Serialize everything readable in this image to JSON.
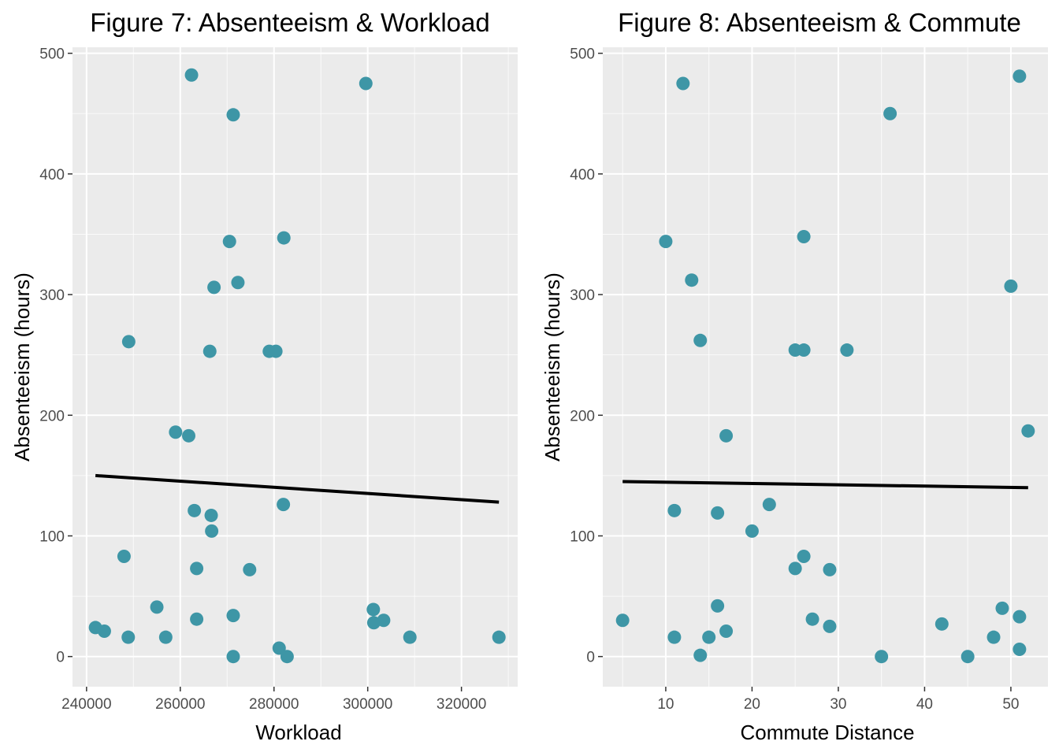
{
  "colors": {
    "point": "#3e96a6",
    "trend_line": "#000000",
    "panel_background": "#ebebeb",
    "grid": "#ffffff"
  },
  "chart_data": [
    {
      "type": "scatter",
      "title": "Figure 7: Absenteeism & Workload",
      "xlabel": "Workload",
      "ylabel": "Absenteeism (hours)",
      "xlim": [
        237000,
        332000
      ],
      "ylim": [
        -25,
        505
      ],
      "xticks": [
        240000,
        260000,
        280000,
        300000,
        320000
      ],
      "xtick_labels": [
        "240000",
        "260000",
        "280000",
        "300000",
        "320000"
      ],
      "yticks": [
        0,
        100,
        200,
        300,
        400,
        500
      ],
      "ytick_labels": [
        "0",
        "100",
        "200",
        "300",
        "400",
        "500"
      ],
      "grid": true,
      "points": [
        [
          262400,
          482
        ],
        [
          299600,
          475
        ],
        [
          271300,
          449
        ],
        [
          282100,
          347
        ],
        [
          270500,
          344
        ],
        [
          272300,
          310
        ],
        [
          267200,
          306
        ],
        [
          249000,
          261
        ],
        [
          266300,
          253
        ],
        [
          279000,
          253
        ],
        [
          280400,
          253
        ],
        [
          259000,
          186
        ],
        [
          261800,
          183
        ],
        [
          282000,
          126
        ],
        [
          263000,
          121
        ],
        [
          266600,
          117
        ],
        [
          266700,
          104
        ],
        [
          248000,
          83
        ],
        [
          263500,
          73
        ],
        [
          274800,
          72
        ],
        [
          255000,
          41
        ],
        [
          301200,
          39
        ],
        [
          271300,
          34
        ],
        [
          263500,
          31
        ],
        [
          303400,
          30
        ],
        [
          301300,
          28
        ],
        [
          241900,
          24
        ],
        [
          243800,
          21
        ],
        [
          248900,
          16
        ],
        [
          256900,
          16
        ],
        [
          309000,
          16
        ],
        [
          328000,
          16
        ],
        [
          281100,
          7
        ],
        [
          271300,
          0
        ],
        [
          282800,
          0
        ]
      ],
      "trend": {
        "x": [
          241900,
          328000
        ],
        "y": [
          150,
          128
        ]
      }
    },
    {
      "type": "scatter",
      "title": "Figure 8: Absenteeism & Commute",
      "xlabel": "Commute Distance",
      "ylabel": "Absenteeism (hours)",
      "xlim": [
        2.7,
        54.3
      ],
      "ylim": [
        -25,
        505
      ],
      "xticks": [
        10,
        20,
        30,
        40,
        50
      ],
      "xtick_labels": [
        "10",
        "20",
        "30",
        "40",
        "50"
      ],
      "yticks": [
        0,
        100,
        200,
        300,
        400,
        500
      ],
      "ytick_labels": [
        "0",
        "100",
        "200",
        "300",
        "400",
        "500"
      ],
      "grid": true,
      "points": [
        [
          51,
          481
        ],
        [
          12,
          475
        ],
        [
          36,
          450
        ],
        [
          26,
          348
        ],
        [
          10,
          344
        ],
        [
          13,
          312
        ],
        [
          50,
          307
        ],
        [
          14,
          262
        ],
        [
          25,
          254
        ],
        [
          26,
          254
        ],
        [
          31,
          254
        ],
        [
          52,
          187
        ],
        [
          17,
          183
        ],
        [
          22,
          126
        ],
        [
          11,
          121
        ],
        [
          16,
          119
        ],
        [
          20,
          104
        ],
        [
          26,
          83
        ],
        [
          25,
          73
        ],
        [
          29,
          72
        ],
        [
          16,
          42
        ],
        [
          49,
          40
        ],
        [
          51,
          33
        ],
        [
          27,
          31
        ],
        [
          5,
          30
        ],
        [
          42,
          27
        ],
        [
          29,
          25
        ],
        [
          17,
          21
        ],
        [
          11,
          16
        ],
        [
          15,
          16
        ],
        [
          48,
          16
        ],
        [
          51,
          6
        ],
        [
          14,
          1
        ],
        [
          35,
          0
        ],
        [
          45,
          0
        ]
      ],
      "trend": {
        "x": [
          5,
          52
        ],
        "y": [
          145,
          140
        ]
      }
    }
  ]
}
